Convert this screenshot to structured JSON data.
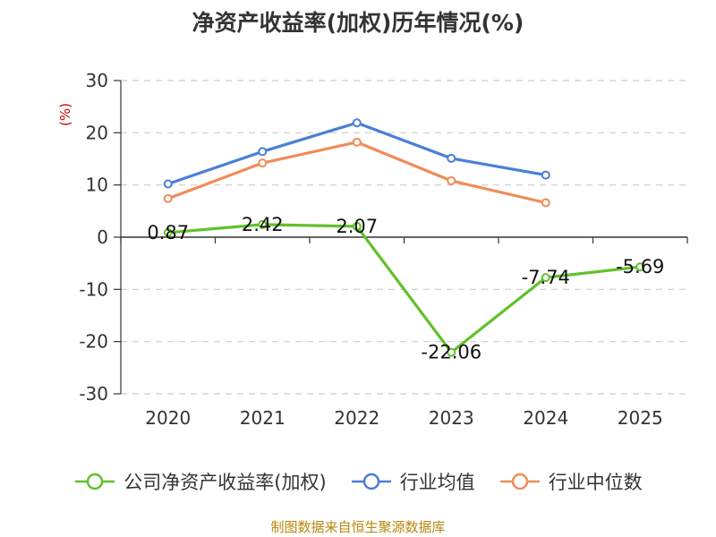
{
  "chart_data": {
    "type": "line",
    "title": "净资产收益率(加权)历年情况(%)",
    "ylabel": "(%)",
    "xlabel": "",
    "categories": [
      "2020",
      "2021",
      "2022",
      "2023",
      "2024",
      "2025"
    ],
    "ylim": [
      -30,
      30
    ],
    "yticks": [
      30,
      20,
      10,
      0,
      -10,
      -20,
      -30
    ],
    "grid": true,
    "legend_position": "bottom",
    "series": [
      {
        "name": "公司净资产收益率(加权)",
        "color": "#62c02a",
        "values": [
          0.87,
          2.42,
          2.07,
          -22.06,
          -7.74,
          -5.69
        ],
        "labels": [
          "0.87",
          "2.42",
          "2.07",
          "-22.06",
          "-7.74",
          "-5.69"
        ]
      },
      {
        "name": "行业均值",
        "color": "#4a7fd6",
        "values": [
          10.2,
          16.4,
          21.9,
          15.1,
          11.9,
          null
        ]
      },
      {
        "name": "行业中位数",
        "color": "#f08c58",
        "values": [
          7.4,
          14.2,
          18.2,
          10.8,
          6.6,
          null
        ]
      }
    ]
  },
  "source_text": "制图数据来自恒生聚源数据库"
}
